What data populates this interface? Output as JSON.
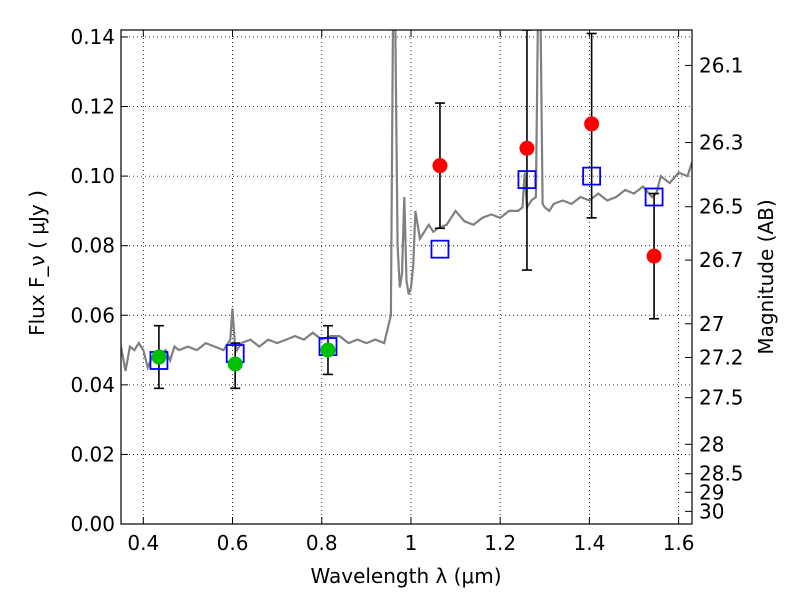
{
  "chart_data": {
    "type": "scatter",
    "xlabel": "Wavelength  λ (μm)",
    "ylabel": "Flux  F_ν  ( μJy )",
    "ylabel_right": "Magnitude (AB)",
    "xlim": [
      0.35,
      1.63
    ],
    "ylim": [
      0.0,
      0.142
    ],
    "grid": true,
    "x_ticks": [
      0.4,
      0.6,
      0.8,
      1.0,
      1.2,
      1.4,
      1.6
    ],
    "x_tick_labels": [
      "0.4",
      "0.6",
      "0.8",
      "1",
      "1.2",
      "1.4",
      "1.6"
    ],
    "y_ticks": [
      0.0,
      0.02,
      0.04,
      0.06,
      0.08,
      0.1,
      0.12,
      0.14
    ],
    "y_tick_labels": [
      "0.00",
      "0.02",
      "0.04",
      "0.06",
      "0.08",
      "0.10",
      "0.12",
      "0.14"
    ],
    "mag_ticks": [
      "26.1",
      "26.3",
      "26.5",
      "26.7",
      "27",
      "27.2",
      "27.5",
      "28",
      "28.5",
      "29",
      "30"
    ],
    "colors": {
      "spectrum": "#808080",
      "observed_green": "#00c000",
      "observed_red": "#ff0000",
      "model_box": "#0000ff",
      "errorbar": "#000000"
    },
    "spectrum": {
      "x": [
        0.35,
        0.36,
        0.37,
        0.38,
        0.39,
        0.4,
        0.41,
        0.42,
        0.43,
        0.44,
        0.45,
        0.46,
        0.47,
        0.48,
        0.5,
        0.52,
        0.54,
        0.56,
        0.58,
        0.595,
        0.6,
        0.605,
        0.61,
        0.62,
        0.64,
        0.66,
        0.68,
        0.7,
        0.72,
        0.74,
        0.76,
        0.78,
        0.8,
        0.82,
        0.84,
        0.86,
        0.88,
        0.9,
        0.92,
        0.94,
        0.955,
        0.96,
        0.965,
        0.97,
        0.975,
        0.98,
        0.985,
        0.99,
        0.995,
        1.0,
        1.005,
        1.01,
        1.02,
        1.03,
        1.04,
        1.05,
        1.06,
        1.08,
        1.1,
        1.12,
        1.14,
        1.16,
        1.18,
        1.2,
        1.22,
        1.24,
        1.25,
        1.255,
        1.26,
        1.27,
        1.28,
        1.285,
        1.29,
        1.295,
        1.3,
        1.31,
        1.32,
        1.34,
        1.36,
        1.38,
        1.4,
        1.42,
        1.44,
        1.46,
        1.48,
        1.5,
        1.52,
        1.54,
        1.55,
        1.56,
        1.58,
        1.6,
        1.62,
        1.63
      ],
      "y": [
        0.051,
        0.044,
        0.051,
        0.05,
        0.052,
        0.05,
        0.045,
        0.048,
        0.047,
        0.049,
        0.05,
        0.047,
        0.051,
        0.05,
        0.051,
        0.05,
        0.052,
        0.051,
        0.05,
        0.053,
        0.062,
        0.052,
        0.05,
        0.052,
        0.053,
        0.051,
        0.053,
        0.052,
        0.053,
        0.054,
        0.053,
        0.055,
        0.053,
        0.054,
        0.054,
        0.052,
        0.053,
        0.052,
        0.053,
        0.052,
        0.06,
        0.15,
        0.143,
        0.08,
        0.068,
        0.072,
        0.094,
        0.07,
        0.066,
        0.068,
        0.074,
        0.09,
        0.082,
        0.084,
        0.086,
        0.084,
        0.085,
        0.086,
        0.09,
        0.087,
        0.086,
        0.088,
        0.089,
        0.088,
        0.09,
        0.09,
        0.091,
        0.101,
        0.091,
        0.093,
        0.094,
        0.15,
        0.152,
        0.092,
        0.091,
        0.09,
        0.092,
        0.093,
        0.092,
        0.094,
        0.093,
        0.095,
        0.093,
        0.094,
        0.096,
        0.095,
        0.097,
        0.094,
        0.095,
        0.1,
        0.098,
        0.101,
        0.1,
        0.104
      ]
    },
    "observed": [
      {
        "x": 0.435,
        "y": 0.048,
        "err_lo": 0.039,
        "err_hi": 0.057,
        "color": "green"
      },
      {
        "x": 0.606,
        "y": 0.046,
        "err_lo": 0.039,
        "err_hi": 0.052,
        "color": "green"
      },
      {
        "x": 0.814,
        "y": 0.05,
        "err_lo": 0.043,
        "err_hi": 0.057,
        "color": "green"
      },
      {
        "x": 1.065,
        "y": 0.103,
        "err_lo": 0.085,
        "err_hi": 0.121,
        "color": "red"
      },
      {
        "x": 1.26,
        "y": 0.108,
        "err_lo": 0.073,
        "err_hi": 0.142,
        "color": "red"
      },
      {
        "x": 1.405,
        "y": 0.115,
        "err_lo": 0.088,
        "err_hi": 0.141,
        "color": "red"
      },
      {
        "x": 1.545,
        "y": 0.077,
        "err_lo": 0.059,
        "err_hi": 0.095,
        "color": "red"
      }
    ],
    "model": [
      {
        "x": 0.435,
        "y": 0.047
      },
      {
        "x": 0.606,
        "y": 0.049
      },
      {
        "x": 0.814,
        "y": 0.051
      },
      {
        "x": 1.065,
        "y": 0.079
      },
      {
        "x": 1.26,
        "y": 0.099
      },
      {
        "x": 1.405,
        "y": 0.1
      },
      {
        "x": 1.545,
        "y": 0.094
      }
    ]
  }
}
